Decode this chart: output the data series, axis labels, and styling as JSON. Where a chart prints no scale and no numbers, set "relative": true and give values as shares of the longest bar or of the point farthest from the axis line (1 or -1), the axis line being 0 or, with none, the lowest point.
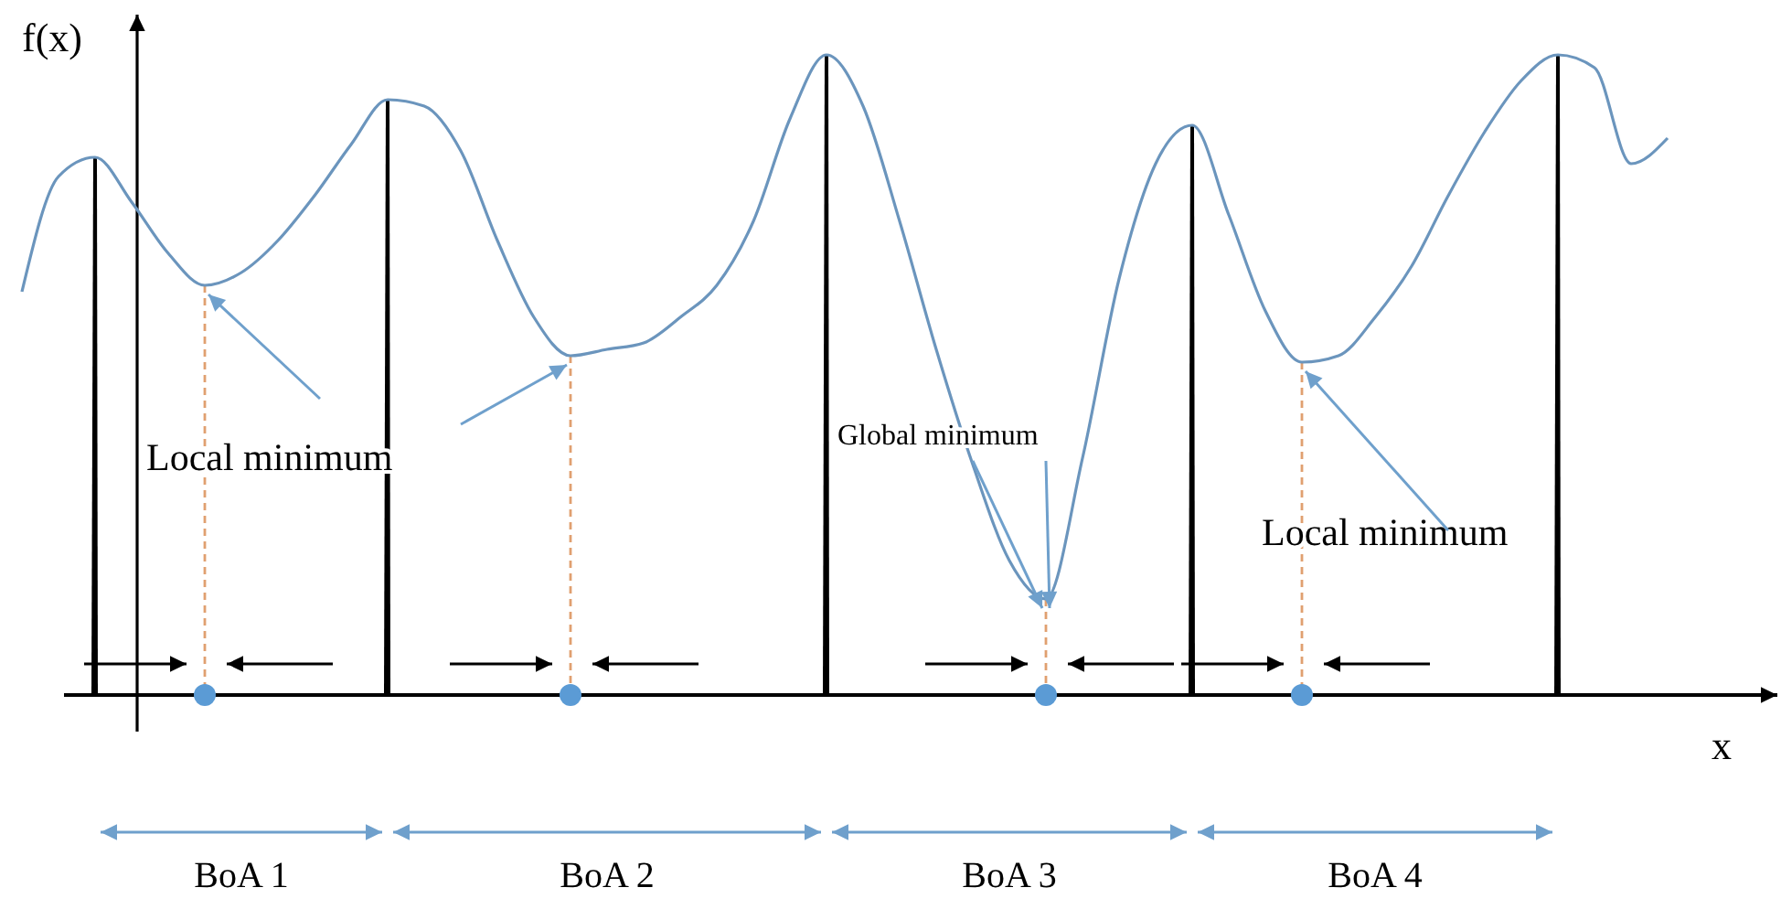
{
  "chart_data": {
    "type": "line",
    "relative": true,
    "xlabel": "x",
    "ylabel": "f(x)",
    "categories": [
      null,
      null,
      null,
      null,
      null,
      null,
      null,
      null,
      null,
      null,
      null,
      null,
      null,
      null,
      null,
      null,
      null,
      null,
      null,
      null,
      null,
      null,
      null,
      null,
      null,
      null,
      null,
      null,
      null,
      null,
      null,
      null,
      null,
      null,
      null,
      null,
      null,
      null,
      null,
      null,
      null,
      null,
      null,
      null,
      null,
      null
    ],
    "series": [
      {
        "color": "#6b95bd",
        "values": [
          0.63,
          0.81,
          0.84,
          0.77,
          0.69,
          0.64,
          0.66,
          0.71,
          0.78,
          0.86,
          0.93,
          0.92,
          0.85,
          0.71,
          0.59,
          0.53,
          0.54,
          0.55,
          0.59,
          0.64,
          0.74,
          0.9,
          1,
          0.92,
          0.74,
          0.54,
          0.36,
          0.21,
          0.15,
          0.37,
          0.65,
          0.83,
          0.89,
          0.75,
          0.6,
          0.52,
          0.53,
          0.59,
          0.67,
          0.78,
          0.88,
          0.96,
          1,
          0.98,
          0.83,
          0.87
        ]
      }
    ],
    "annotations": [
      "Local minimum",
      "Global minimum",
      "Local minimum",
      "BoA 1",
      "BoA 2",
      "BoA 3",
      "BoA 4"
    ]
  }
}
